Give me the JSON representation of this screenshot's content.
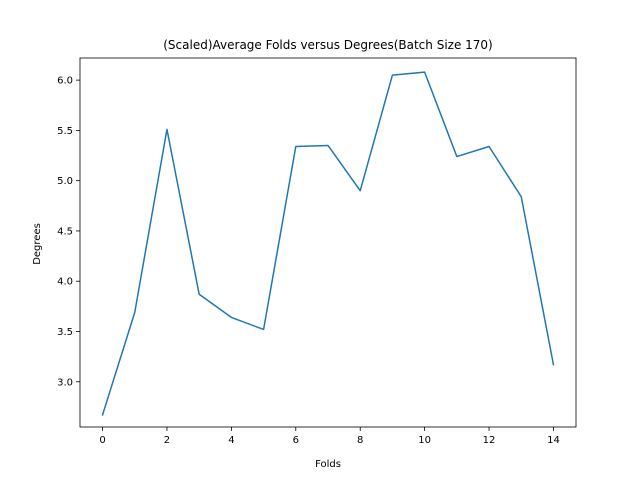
{
  "chart_data": {
    "type": "line",
    "title": "(Scaled)Average Folds versus Degrees(Batch Size 170)",
    "xlabel": "Folds",
    "ylabel": "Degrees",
    "x": [
      0,
      1,
      2,
      3,
      4,
      5,
      6,
      7,
      8,
      9,
      10,
      11,
      12,
      13,
      14
    ],
    "series": [
      {
        "values": [
          2.67,
          3.69,
          5.51,
          3.87,
          3.64,
          3.52,
          5.34,
          5.35,
          4.9,
          6.05,
          6.08,
          5.24,
          5.34,
          4.84,
          3.17
        ],
        "color": "#1f77b4"
      }
    ],
    "xlim": [
      -0.7,
      14.7
    ],
    "ylim": [
      2.55,
      6.22
    ],
    "xticks": [
      0,
      2,
      4,
      6,
      8,
      10,
      12,
      14
    ],
    "yticks": [
      3.0,
      3.5,
      4.0,
      4.5,
      5.0,
      5.5,
      6.0
    ],
    "xtick_labels": [
      "0",
      "2",
      "4",
      "6",
      "8",
      "10",
      "12",
      "14"
    ],
    "ytick_labels": [
      "3.0",
      "3.5",
      "4.0",
      "4.5",
      "5.0",
      "5.5",
      "6.0"
    ],
    "grid": false
  }
}
